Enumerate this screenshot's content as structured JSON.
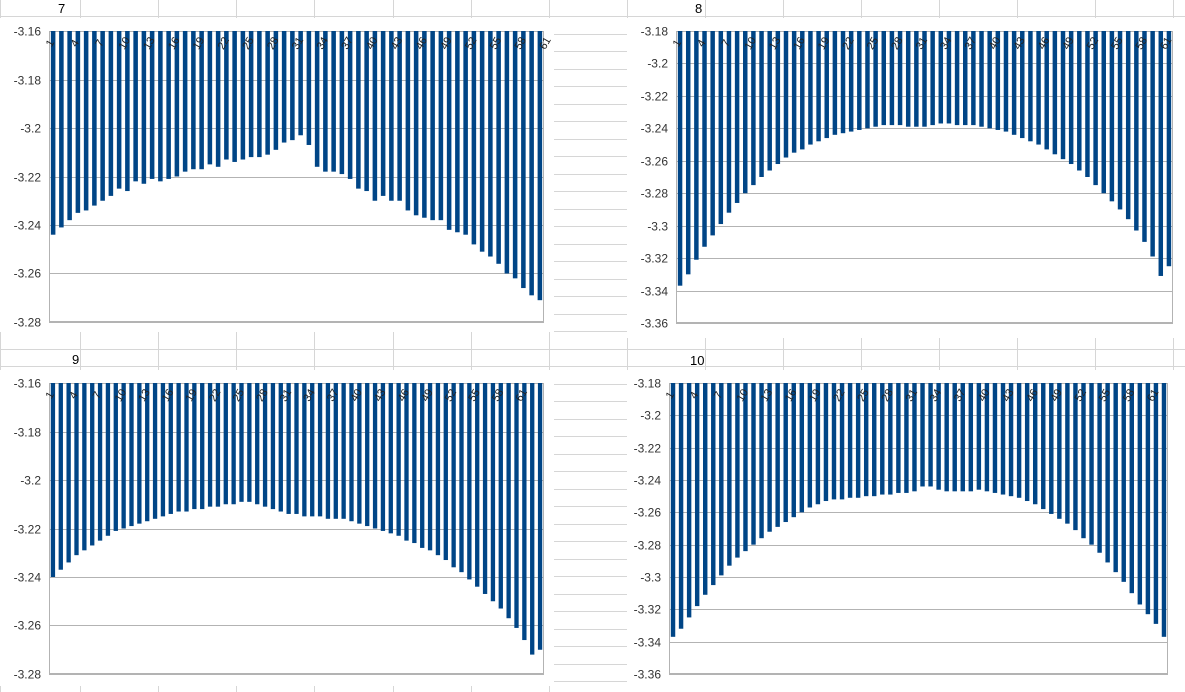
{
  "quadrant_labels": [
    "7",
    "8",
    "9",
    "10"
  ],
  "colors": {
    "bar": "#004586",
    "grid": "#b3b3b3",
    "cell_grid": "#d6d6d6",
    "axis_text": "#333333"
  },
  "chart_data": [
    {
      "type": "bar",
      "ylim": [
        -3.28,
        -3.16
      ],
      "yticks": [
        "-3.16",
        "-3.18",
        "-3.2",
        "-3.22",
        "-3.24",
        "-3.26",
        "-3.28"
      ],
      "category_labels": [
        "1",
        "4",
        "7",
        "10",
        "13",
        "16",
        "19",
        "22",
        "25",
        "28",
        "31",
        "34",
        "37",
        "40",
        "43",
        "46",
        "49",
        "52",
        "55",
        "58",
        "61"
      ],
      "values": [
        -3.244,
        -3.241,
        -3.238,
        -3.235,
        -3.234,
        -3.232,
        -3.23,
        -3.228,
        -3.225,
        -3.226,
        -3.222,
        -3.223,
        -3.221,
        -3.222,
        -3.221,
        -3.22,
        -3.218,
        -3.217,
        -3.217,
        -3.215,
        -3.216,
        -3.213,
        -3.214,
        -3.213,
        -3.212,
        -3.212,
        -3.211,
        -3.209,
        -3.206,
        -3.205,
        -3.203,
        -3.207,
        -3.216,
        -3.218,
        -3.218,
        -3.219,
        -3.221,
        -3.225,
        -3.226,
        -3.23,
        -3.228,
        -3.23,
        -3.23,
        -3.234,
        -3.236,
        -3.237,
        -3.238,
        -3.238,
        -3.242,
        -3.243,
        -3.244,
        -3.248,
        -3.251,
        -3.253,
        -3.256,
        -3.26,
        -3.262,
        -3.266,
        -3.269,
        -3.271
      ]
    },
    {
      "type": "bar",
      "ylim": [
        -3.36,
        -3.18
      ],
      "yticks": [
        "-3.18",
        "-3.2",
        "-3.22",
        "-3.24",
        "-3.26",
        "-3.28",
        "-3.3",
        "-3.32",
        "-3.34",
        "-3.36"
      ],
      "category_labels": [
        "1",
        "4",
        "7",
        "10",
        "13",
        "16",
        "19",
        "22",
        "25",
        "28",
        "31",
        "34",
        "37",
        "40",
        "43",
        "46",
        "49",
        "52",
        "55",
        "58",
        "61"
      ],
      "values": [
        -3.337,
        -3.33,
        -3.321,
        -3.313,
        -3.306,
        -3.299,
        -3.292,
        -3.286,
        -3.28,
        -3.275,
        -3.27,
        -3.266,
        -3.262,
        -3.258,
        -3.255,
        -3.253,
        -3.25,
        -3.248,
        -3.246,
        -3.244,
        -3.243,
        -3.242,
        -3.241,
        -3.24,
        -3.239,
        -3.238,
        -3.238,
        -3.238,
        -3.239,
        -3.239,
        -3.239,
        -3.238,
        -3.237,
        -3.237,
        -3.238,
        -3.238,
        -3.238,
        -3.239,
        -3.24,
        -3.241,
        -3.242,
        -3.244,
        -3.246,
        -3.248,
        -3.25,
        -3.253,
        -3.256,
        -3.259,
        -3.262,
        -3.266,
        -3.27,
        -3.275,
        -3.28,
        -3.285,
        -3.29,
        -3.296,
        -3.303,
        -3.31,
        -3.319,
        -3.331,
        -3.325
      ]
    },
    {
      "type": "bar",
      "ylim": [
        -3.28,
        -3.16
      ],
      "yticks": [
        "-3.16",
        "-3.18",
        "-3.2",
        "-3.22",
        "-3.24",
        "-3.26",
        "-3.28"
      ],
      "category_labels": [
        "1",
        "4",
        "7",
        "10",
        "13",
        "16",
        "19",
        "22",
        "25",
        "28",
        "31",
        "34",
        "37",
        "40",
        "43",
        "46",
        "49",
        "52",
        "55",
        "58",
        "61"
      ],
      "values": [
        -3.24,
        -3.237,
        -3.234,
        -3.231,
        -3.229,
        -3.227,
        -3.225,
        -3.223,
        -3.221,
        -3.22,
        -3.219,
        -3.218,
        -3.217,
        -3.216,
        -3.215,
        -3.214,
        -3.213,
        -3.213,
        -3.212,
        -3.212,
        -3.211,
        -3.211,
        -3.21,
        -3.21,
        -3.209,
        -3.209,
        -3.21,
        -3.211,
        -3.212,
        -3.213,
        -3.214,
        -3.214,
        -3.215,
        -3.215,
        -3.215,
        -3.216,
        -3.216,
        -3.216,
        -3.217,
        -3.218,
        -3.219,
        -3.22,
        -3.221,
        -3.222,
        -3.223,
        -3.225,
        -3.226,
        -3.228,
        -3.229,
        -3.231,
        -3.233,
        -3.236,
        -3.238,
        -3.241,
        -3.244,
        -3.247,
        -3.25,
        -3.253,
        -3.257,
        -3.261,
        -3.266,
        -3.272,
        -3.27
      ]
    },
    {
      "type": "bar",
      "ylim": [
        -3.36,
        -3.18
      ],
      "yticks": [
        "-3.18",
        "-3.2",
        "-3.22",
        "-3.24",
        "-3.26",
        "-3.28",
        "-3.3",
        "-3.32",
        "-3.34",
        "-3.36"
      ],
      "category_labels": [
        "1",
        "4",
        "7",
        "10",
        "13",
        "16",
        "19",
        "22",
        "25",
        "28",
        "31",
        "34",
        "37",
        "40",
        "43",
        "46",
        "49",
        "52",
        "55",
        "58",
        "61"
      ],
      "values": [
        -3.337,
        -3.332,
        -3.325,
        -3.318,
        -3.311,
        -3.305,
        -3.299,
        -3.293,
        -3.288,
        -3.284,
        -3.28,
        -3.276,
        -3.272,
        -3.269,
        -3.266,
        -3.263,
        -3.26,
        -3.257,
        -3.255,
        -3.253,
        -3.252,
        -3.252,
        -3.251,
        -3.251,
        -3.25,
        -3.25,
        -3.249,
        -3.249,
        -3.248,
        -3.248,
        -3.247,
        -3.244,
        -3.244,
        -3.246,
        -3.247,
        -3.247,
        -3.247,
        -3.247,
        -3.246,
        -3.247,
        -3.248,
        -3.249,
        -3.25,
        -3.251,
        -3.253,
        -3.255,
        -3.258,
        -3.261,
        -3.264,
        -3.267,
        -3.271,
        -3.276,
        -3.28,
        -3.285,
        -3.291,
        -3.297,
        -3.303,
        -3.31,
        -3.317,
        -3.323,
        -3.329,
        -3.337
      ]
    }
  ]
}
